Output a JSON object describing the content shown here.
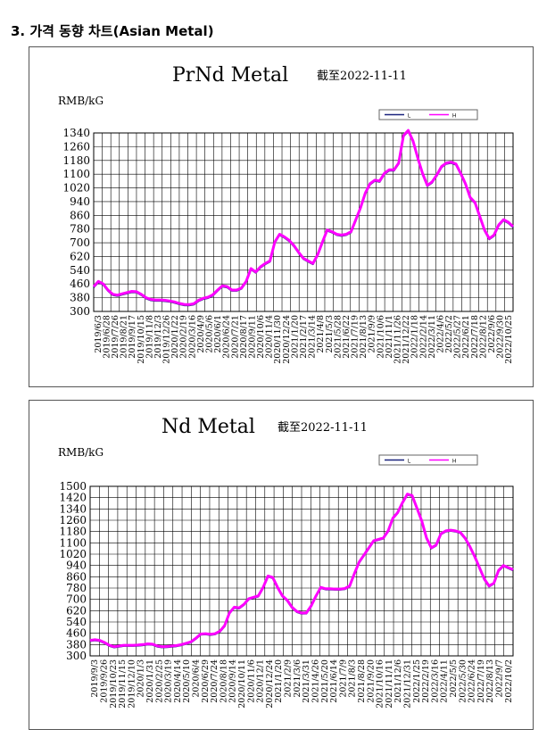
{
  "section_title": "3. 가격 동향 차트(Asian Metal)",
  "chart_data": [
    {
      "type": "line",
      "title": "PrNd Metal",
      "subtitle": "截至2022-11-11",
      "ylabel": "RMB/kG",
      "ylim": [
        300,
        1340
      ],
      "yticks": [
        300,
        380,
        460,
        540,
        620,
        700,
        780,
        860,
        940,
        1020,
        1100,
        1180,
        1260,
        1340
      ],
      "legend": {
        "placement": "top-right",
        "entries": [
          "L",
          "H"
        ]
      },
      "grid": true,
      "x_tick_labels": [
        "2019/6/3",
        "2019/6/28",
        "2019/7/26",
        "2019/8/21",
        "2019/9/17",
        "2019/10/15",
        "2019/11/8",
        "2019/12/3",
        "2019/12/26",
        "2020/1/22",
        "2020/2/19",
        "2020/3/16",
        "2020/4/9",
        "2020/5/6",
        "2020/6/1",
        "2020/6/24",
        "2020/7/21",
        "2020/8/17",
        "2020/9/11",
        "2020/10/6",
        "2020/11/4",
        "2020/11/30",
        "2020/12/24",
        "2021/1/20",
        "2021/2/17",
        "2021/3/14",
        "2021/4/8",
        "2021/5/3",
        "2021/5/28",
        "2021/6/22",
        "2021/7/19",
        "2021/8/13",
        "2021/9/9",
        "2021/10/6",
        "2021/11/1",
        "2021/11/26",
        "2021/12/22",
        "2022/1/18",
        "2022/2/14",
        "2022/3/11",
        "2022/4/6",
        "2022/5/2",
        "2022/5/27",
        "2022/6/21",
        "2022/7/18",
        "2022/8/12",
        "2022/9/6",
        "2022/9/30",
        "2022/10/25"
      ],
      "series": [
        {
          "name": "L",
          "color": "#1a237e",
          "values": [
            440,
            470,
            455,
            420,
            395,
            390,
            398,
            405,
            412,
            410,
            395,
            375,
            365,
            362,
            362,
            360,
            356,
            350,
            342,
            336,
            335,
            340,
            360,
            372,
            378,
            392,
            420,
            445,
            440,
            420,
            420,
            432,
            470,
            545,
            525,
            555,
            575,
            590,
            700,
            745,
            730,
            710,
            680,
            640,
            605,
            590,
            575,
            625,
            700,
            770,
            760,
            745,
            740,
            745,
            760,
            830,
            900,
            985,
            1040,
            1060,
            1055,
            1100,
            1120,
            1120,
            1160,
            1320,
            1350,
            1290,
            1190,
            1100,
            1030,
            1050,
            1090,
            1140,
            1160,
            1165,
            1155,
            1100,
            1040,
            960,
            930,
            850,
            770,
            720,
            740,
            800,
            830,
            815,
            790
          ]
        },
        {
          "name": "H",
          "color": "#ff00ff",
          "values": [
            445,
            475,
            460,
            425,
            400,
            395,
            403,
            410,
            417,
            415,
            400,
            380,
            370,
            367,
            367,
            365,
            361,
            355,
            347,
            341,
            340,
            345,
            365,
            377,
            383,
            397,
            425,
            450,
            445,
            425,
            425,
            437,
            475,
            550,
            530,
            560,
            580,
            595,
            705,
            750,
            735,
            715,
            685,
            645,
            610,
            595,
            580,
            630,
            705,
            775,
            765,
            750,
            745,
            750,
            765,
            835,
            905,
            990,
            1045,
            1065,
            1060,
            1105,
            1125,
            1125,
            1165,
            1325,
            1355,
            1295,
            1195,
            1105,
            1035,
            1055,
            1095,
            1145,
            1165,
            1170,
            1160,
            1105,
            1045,
            965,
            935,
            855,
            775,
            725,
            745,
            805,
            835,
            820,
            795
          ]
        }
      ]
    },
    {
      "type": "line",
      "title": "Nd Metal",
      "subtitle": "截至2022-11-11",
      "ylabel": "RMB/kG",
      "ylim": [
        300,
        1500
      ],
      "yticks": [
        300,
        380,
        460,
        540,
        620,
        700,
        780,
        860,
        940,
        1020,
        1100,
        1180,
        1260,
        1340,
        1420,
        1500
      ],
      "legend": {
        "placement": "top-right",
        "entries": [
          "L",
          "H"
        ]
      },
      "grid": true,
      "x_tick_labels": [
        "2019/9/3",
        "2019/9/26",
        "2019/10/23",
        "2019/11/15",
        "2019/12/10",
        "2020/1/3",
        "2020/1/31",
        "2020/2/25",
        "2020/3/19",
        "2020/4/14",
        "2020/5/10",
        "2020/6/4",
        "2020/6/29",
        "2020/7/24",
        "2020/8/18",
        "2020/9/14",
        "2020/10/11",
        "2020/11/6",
        "2020/12/1",
        "2020/12/24",
        "2021/1/20",
        "2021/2/9",
        "2021/3/6",
        "2021/3/31",
        "2021/4/26",
        "2021/5/20",
        "2021/6/14",
        "2021/7/9",
        "2021/8/3",
        "2021/8/28",
        "2021/9/20",
        "2021/10/16",
        "2021/11/11",
        "2021/12/6",
        "2021/12/31",
        "2022/1/25",
        "2022/2/19",
        "2022/3/16",
        "2022/4/11",
        "2022/5/5",
        "2022/5/30",
        "2022/6/24",
        "2022/7/19",
        "2022/8/13",
        "2022/9/7",
        "2022/10/2"
      ],
      "series": [
        {
          "name": "L",
          "color": "#1a237e",
          "values": [
            405,
            410,
            405,
            390,
            370,
            360,
            365,
            370,
            370,
            370,
            372,
            375,
            380,
            378,
            365,
            360,
            362,
            365,
            368,
            375,
            385,
            395,
            420,
            450,
            452,
            448,
            452,
            470,
            510,
            600,
            640,
            635,
            660,
            700,
            710,
            720,
            780,
            860,
            850,
            780,
            720,
            690,
            640,
            610,
            598,
            600,
            650,
            720,
            780,
            770,
            770,
            768,
            768,
            772,
            790,
            880,
            960,
            1010,
            1060,
            1110,
            1120,
            1130,
            1180,
            1270,
            1310,
            1380,
            1440,
            1430,
            1340,
            1250,
            1130,
            1060,
            1080,
            1160,
            1180,
            1185,
            1180,
            1170,
            1130,
            1070,
            1000,
            920,
            840,
            790,
            810,
            900,
            935,
            920,
            905
          ]
        },
        {
          "name": "H",
          "color": "#ff00ff",
          "values": [
            410,
            415,
            410,
            395,
            375,
            365,
            370,
            375,
            375,
            375,
            377,
            380,
            385,
            383,
            370,
            365,
            367,
            370,
            373,
            380,
            390,
            400,
            425,
            455,
            457,
            453,
            457,
            475,
            515,
            605,
            645,
            640,
            665,
            705,
            715,
            725,
            785,
            865,
            855,
            785,
            725,
            695,
            645,
            615,
            603,
            605,
            655,
            725,
            785,
            775,
            775,
            773,
            773,
            777,
            795,
            885,
            965,
            1015,
            1065,
            1115,
            1125,
            1135,
            1185,
            1275,
            1315,
            1385,
            1445,
            1435,
            1345,
            1255,
            1135,
            1065,
            1085,
            1165,
            1185,
            1190,
            1185,
            1175,
            1135,
            1075,
            1005,
            925,
            845,
            795,
            815,
            905,
            940,
            925,
            910
          ]
        }
      ]
    }
  ]
}
